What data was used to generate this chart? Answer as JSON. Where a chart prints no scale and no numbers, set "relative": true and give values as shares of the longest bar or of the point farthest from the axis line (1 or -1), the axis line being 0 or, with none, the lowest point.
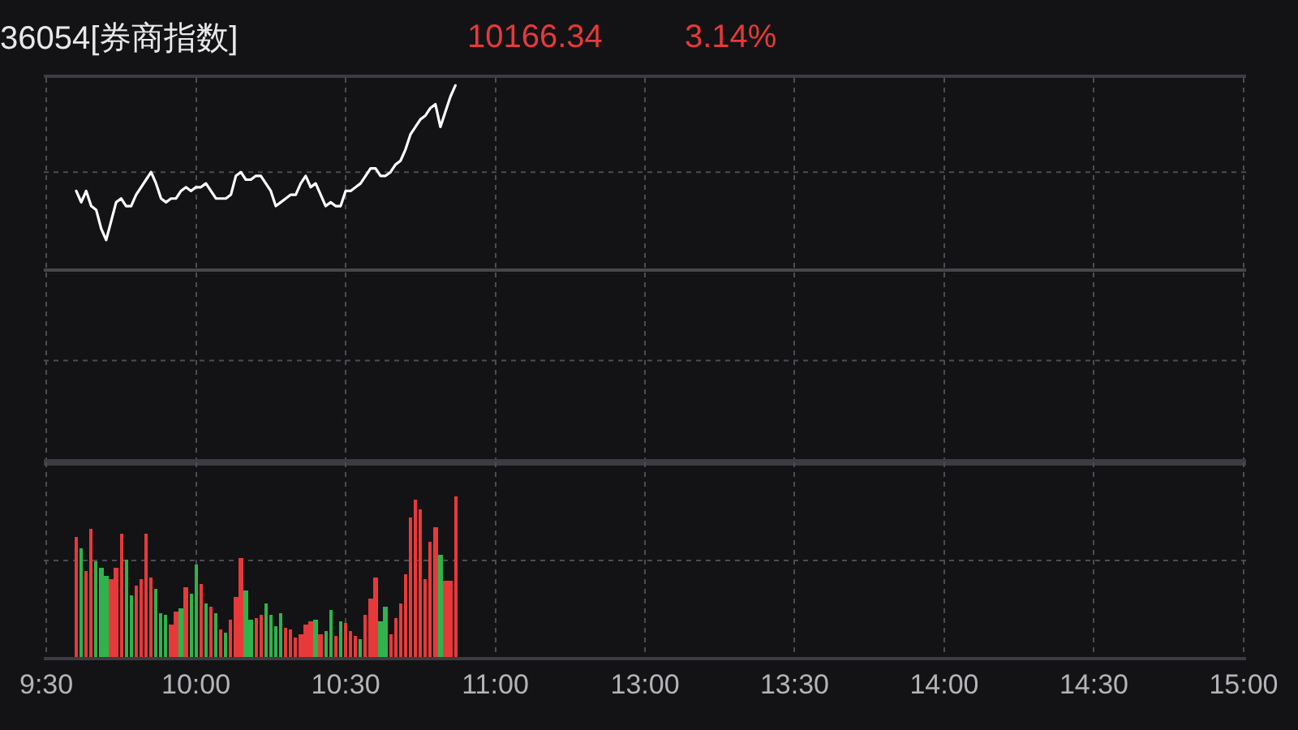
{
  "chart_data": [
    {
      "type": "line",
      "title": "36054[券商指数]",
      "annotations": [
        "10166.34",
        "3.14%"
      ],
      "relative": true,
      "color": "#ffffff",
      "grid": "x",
      "tick_labels": false,
      "ref_lines": [
        {
          "axis": "y",
          "value": 0.77,
          "line_style": "dotted",
          "color": "#4c4c52"
        },
        {
          "axis": "y",
          "value": 0.51,
          "line_style": "solid",
          "color": "#46464b"
        },
        {
          "axis": "y",
          "value": 0.27,
          "line_style": "dotted",
          "color": "#4c4c52"
        }
      ],
      "categories": [
        null,
        null,
        null,
        null,
        null,
        null,
        null,
        null,
        null,
        null,
        null,
        null,
        null,
        null,
        null,
        null,
        null,
        null,
        null,
        null,
        null,
        null,
        null,
        null,
        null,
        null,
        null,
        null,
        null,
        null,
        null,
        null,
        null,
        null,
        null,
        null,
        null,
        null,
        null,
        null,
        null,
        null,
        null,
        null,
        null,
        null,
        null,
        null,
        null,
        null,
        null,
        null,
        null,
        null,
        null,
        null,
        null,
        null,
        null,
        null,
        null,
        null,
        null,
        null,
        null,
        null,
        null,
        null,
        null,
        null,
        null,
        null,
        null,
        null,
        null,
        null,
        null,
        null,
        null,
        null,
        null,
        null,
        null,
        null,
        null,
        null,
        null,
        null,
        null,
        null,
        null,
        null,
        null,
        null,
        null,
        null,
        null,
        null,
        null,
        null,
        null,
        null,
        null,
        null,
        null,
        null,
        null,
        null,
        null,
        null,
        null,
        null,
        null,
        null,
        null,
        null,
        null,
        null,
        null,
        null,
        null,
        null,
        null,
        null,
        null,
        null,
        null,
        null,
        null,
        null,
        null,
        null,
        null,
        null,
        null,
        null,
        null,
        null,
        null,
        null,
        null,
        null,
        null,
        null,
        null,
        null,
        null,
        null,
        null,
        null,
        null,
        null,
        null,
        null,
        null,
        null,
        null,
        null,
        null,
        null,
        null,
        null,
        null,
        null,
        null,
        null,
        null,
        null,
        null,
        null,
        null,
        null,
        null,
        null,
        null,
        null,
        null,
        null,
        null,
        null,
        null,
        null,
        null,
        null,
        null,
        null,
        null,
        null,
        null,
        null,
        null,
        null,
        null,
        null,
        null,
        null,
        null,
        null,
        null,
        null,
        null,
        null,
        null,
        null,
        null,
        null,
        null,
        null,
        null,
        null,
        null,
        null,
        null,
        null,
        null,
        null,
        null,
        null,
        null,
        null,
        null,
        null,
        null,
        null,
        null,
        null,
        null,
        null,
        null,
        null,
        null,
        null,
        null,
        null,
        null,
        null,
        null,
        null,
        null,
        null,
        null
      ],
      "values": [
        null,
        null,
        null,
        null,
        null,
        null,
        0.72,
        0.69,
        0.72,
        0.68,
        0.67,
        0.62,
        0.59,
        0.64,
        0.69,
        0.7,
        0.68,
        0.68,
        0.71,
        0.73,
        0.75,
        0.77,
        0.74,
        0.7,
        0.69,
        0.7,
        0.7,
        0.72,
        0.73,
        0.72,
        0.73,
        0.73,
        0.74,
        0.72,
        0.7,
        0.7,
        0.7,
        0.71,
        0.76,
        0.77,
        0.75,
        0.75,
        0.76,
        0.76,
        0.74,
        0.72,
        0.68,
        0.69,
        0.7,
        0.71,
        0.71,
        0.74,
        0.76,
        0.73,
        0.74,
        0.71,
        0.68,
        0.69,
        0.68,
        0.68,
        0.72,
        0.72,
        0.73,
        0.74,
        0.76,
        0.78,
        0.78,
        0.76,
        0.76,
        0.77,
        0.79,
        0.8,
        0.83,
        0.87,
        0.89,
        0.91,
        0.92,
        0.94,
        0.95,
        0.89,
        0.93,
        0.97,
        1.0,
        null,
        null,
        null,
        null,
        null,
        null,
        null,
        null,
        null,
        null,
        null,
        null,
        null,
        null,
        null,
        null,
        null,
        null,
        null,
        null,
        null,
        null,
        null,
        null,
        null,
        null,
        null,
        null,
        null,
        null,
        null,
        null,
        null,
        null,
        null,
        null,
        null,
        null,
        null,
        null,
        null,
        null,
        null,
        null,
        null,
        null,
        null,
        null,
        null,
        null,
        null,
        null,
        null,
        null,
        null,
        null,
        null,
        null,
        null,
        null,
        null,
        null,
        null,
        null,
        null,
        null,
        null,
        null,
        null,
        null,
        null,
        null,
        null,
        null,
        null,
        null,
        null,
        null,
        null,
        null,
        null,
        null,
        null,
        null,
        null,
        null,
        null,
        null,
        null,
        null,
        null,
        null,
        null,
        null,
        null,
        null,
        null,
        null,
        null,
        null,
        null,
        null,
        null,
        null,
        null,
        null,
        null,
        null,
        null,
        null,
        null,
        null,
        null,
        null,
        null,
        null,
        null,
        null,
        null,
        null,
        null,
        null,
        null,
        null,
        null,
        null,
        null,
        null,
        null,
        null,
        null,
        null,
        null,
        null,
        null,
        null,
        null,
        null,
        null,
        null,
        null,
        null,
        null,
        null,
        null,
        null,
        null,
        null,
        null,
        null,
        null,
        null,
        null,
        null,
        null,
        null,
        null,
        null
      ]
    },
    {
      "type": "bar",
      "relative": true,
      "grid": "x",
      "tick_labels": "x",
      "ref_lines": [
        {
          "axis": "y",
          "value": 0.6,
          "line_style": "dotted",
          "color": "#4c4c52"
        }
      ],
      "categories": [
        "9:30",
        null,
        null,
        null,
        null,
        null,
        null,
        null,
        null,
        null,
        null,
        null,
        null,
        null,
        null,
        null,
        null,
        null,
        null,
        null,
        null,
        null,
        null,
        null,
        null,
        null,
        null,
        null,
        null,
        null,
        "10:00",
        null,
        null,
        null,
        null,
        null,
        null,
        null,
        null,
        null,
        null,
        null,
        null,
        null,
        null,
        null,
        null,
        null,
        null,
        null,
        null,
        null,
        null,
        null,
        null,
        null,
        null,
        null,
        null,
        null,
        "10:30",
        null,
        null,
        null,
        null,
        null,
        null,
        null,
        null,
        null,
        null,
        null,
        null,
        null,
        null,
        null,
        null,
        null,
        null,
        null,
        null,
        null,
        null,
        null,
        null,
        null,
        null,
        null,
        null,
        null,
        "11:00",
        null,
        null,
        null,
        null,
        null,
        null,
        null,
        null,
        null,
        null,
        null,
        null,
        null,
        null,
        null,
        null,
        null,
        null,
        null,
        null,
        null,
        null,
        null,
        null,
        null,
        null,
        null,
        null,
        null,
        "13:00",
        null,
        null,
        null,
        null,
        null,
        null,
        null,
        null,
        null,
        null,
        null,
        null,
        null,
        null,
        null,
        null,
        null,
        null,
        null,
        null,
        null,
        null,
        null,
        null,
        null,
        null,
        null,
        null,
        null,
        "13:30",
        null,
        null,
        null,
        null,
        null,
        null,
        null,
        null,
        null,
        null,
        null,
        null,
        null,
        null,
        null,
        null,
        null,
        null,
        null,
        null,
        null,
        null,
        null,
        null,
        null,
        null,
        null,
        null,
        null,
        "14:00",
        null,
        null,
        null,
        null,
        null,
        null,
        null,
        null,
        null,
        null,
        null,
        null,
        null,
        null,
        null,
        null,
        null,
        null,
        null,
        null,
        null,
        null,
        null,
        null,
        null,
        null,
        null,
        null,
        null,
        "14:30",
        null,
        null,
        null,
        null,
        null,
        null,
        null,
        null,
        null,
        null,
        null,
        null,
        null,
        null,
        null,
        null,
        null,
        null,
        null,
        null,
        null,
        null,
        null,
        null,
        null,
        null,
        null,
        null,
        null,
        "15:00"
      ],
      "values": [
        null,
        null,
        null,
        null,
        null,
        null,
        0.75,
        0.68,
        0.53,
        0.8,
        0.59,
        0.55,
        0.5,
        0.48,
        0.55,
        0.77,
        0.6,
        0.38,
        0.44,
        0.48,
        0.77,
        0.49,
        0.42,
        0.27,
        0.26,
        0.2,
        0.28,
        0.3,
        0.43,
        0.39,
        0.57,
        0.45,
        0.33,
        0.31,
        0.27,
        0.17,
        0.15,
        0.23,
        0.37,
        0.61,
        0.41,
        0.23,
        0.24,
        0.26,
        0.33,
        0.26,
        0.19,
        0.27,
        0.18,
        0.17,
        0.12,
        0.14,
        0.2,
        0.22,
        0.23,
        0.14,
        0.16,
        0.29,
        0.13,
        0.22,
        0.21,
        0.16,
        0.13,
        0.11,
        0.26,
        0.36,
        0.49,
        0.22,
        0.31,
        0.14,
        0.24,
        0.33,
        0.51,
        0.87,
        0.98,
        0.92,
        0.48,
        0.72,
        0.81,
        0.64,
        0.47,
        0.47,
        1.0,
        null,
        null,
        null,
        null,
        null,
        null,
        null,
        null,
        null,
        null,
        null,
        null,
        null,
        null,
        null,
        null,
        null,
        null,
        null,
        null,
        null,
        null,
        null,
        null,
        null,
        null,
        null,
        null,
        null,
        null,
        null,
        null,
        null,
        null,
        null,
        null,
        null,
        null,
        null,
        null,
        null,
        null,
        null,
        null,
        null,
        null,
        null,
        null,
        null,
        null,
        null,
        null,
        null,
        null,
        null,
        null,
        null,
        null,
        null,
        null,
        null,
        null,
        null,
        null,
        null,
        null,
        null,
        null,
        null,
        null,
        null,
        null,
        null,
        null,
        null,
        null,
        null,
        null,
        null,
        null,
        null,
        null,
        null,
        null,
        null,
        null,
        null,
        null,
        null,
        null,
        null,
        null,
        null,
        null,
        null,
        null,
        null,
        null,
        null,
        null,
        null,
        null,
        null,
        null,
        null,
        null,
        null,
        null,
        null,
        null,
        null,
        null,
        null,
        null,
        null,
        null,
        null,
        null,
        null,
        null,
        null,
        null,
        null,
        null,
        null,
        null,
        null,
        null,
        null,
        null,
        null,
        null,
        null,
        null,
        null,
        null,
        null,
        null,
        null,
        null,
        null,
        null,
        null,
        null,
        null,
        null,
        null,
        null,
        null,
        null,
        null,
        null,
        null,
        null,
        null,
        null,
        null,
        null
      ],
      "colors": [
        null,
        null,
        null,
        null,
        null,
        null,
        "#e8393a",
        "#2fb34c",
        "#e8393a",
        "#e8393a",
        "#2fb34c",
        "#2fb34c",
        "#2fb34c",
        "#e8393a",
        "#e8393a",
        "#e8393a",
        "#2fb34c",
        "#2fb34c",
        "#e8393a",
        "#e8393a",
        "#e8393a",
        "#e8393a",
        "#2fb34c",
        "#2fb34c",
        "#2fb34c",
        "#e8393a",
        "#e8393a",
        "#2fb34c",
        "#e8393a",
        "#2fb34c",
        "#2fb34c",
        "#e8393a",
        "#2fb34c",
        "#e8393a",
        "#2fb34c",
        "#e8393a",
        "#2fb34c",
        "#e8393a",
        "#e8393a",
        "#e8393a",
        "#2fb34c",
        "#2fb34c",
        "#e8393a",
        "#e8393a",
        "#2fb34c",
        "#2fb34c",
        "#2fb34c",
        "#2fb34c",
        "#e8393a",
        "#e8393a",
        "#e8393a",
        "#e8393a",
        "#e8393a",
        "#e8393a",
        "#2fb34c",
        "#e8393a",
        "#2fb34c",
        "#2fb34c",
        "#e8393a",
        "#2fb34c",
        "#e8393a",
        "#e8393a",
        "#e8393a",
        "#2fb34c",
        "#e8393a",
        "#e8393a",
        "#e8393a",
        "#2fb34c",
        "#2fb34c",
        "#e8393a",
        "#e8393a",
        "#e8393a",
        "#e8393a",
        "#e8393a",
        "#e8393a",
        "#e8393a",
        "#e8393a",
        "#e8393a",
        "#e8393a",
        "#2fb34c",
        "#e8393a",
        "#e8393a",
        "#e8393a",
        null,
        null,
        null,
        null,
        null,
        null,
        null,
        null,
        null,
        null,
        null,
        null,
        null,
        null,
        null,
        null,
        null,
        null,
        null,
        null,
        null,
        null,
        null,
        null,
        null,
        null,
        null,
        null,
        null,
        null,
        null,
        null,
        null,
        null,
        null,
        null,
        null,
        null,
        null,
        null,
        null,
        null,
        null,
        null,
        null,
        null,
        null,
        null,
        null,
        null,
        null,
        null,
        null,
        null,
        null,
        null,
        null,
        null,
        null,
        null,
        null,
        null,
        null,
        null,
        null,
        null,
        null,
        null,
        null,
        null,
        null,
        null,
        null,
        null,
        null,
        null,
        null,
        null,
        null,
        null,
        null,
        null,
        null,
        null,
        null,
        null,
        null,
        null,
        null,
        null,
        null,
        null,
        null,
        null,
        null,
        null,
        null,
        null,
        null,
        null,
        null,
        null,
        null,
        null,
        null,
        null,
        null,
        null,
        null,
        null,
        null,
        null,
        null,
        null,
        null,
        null,
        null,
        null,
        null,
        null,
        null,
        null,
        null,
        null,
        null,
        null,
        null,
        null,
        null,
        null,
        null,
        null,
        null,
        null,
        null,
        null,
        null,
        null,
        null,
        null,
        null,
        null,
        null,
        null,
        null,
        null,
        null,
        null,
        null,
        null,
        null,
        null,
        null,
        null,
        null,
        null,
        null,
        null
      ]
    }
  ]
}
